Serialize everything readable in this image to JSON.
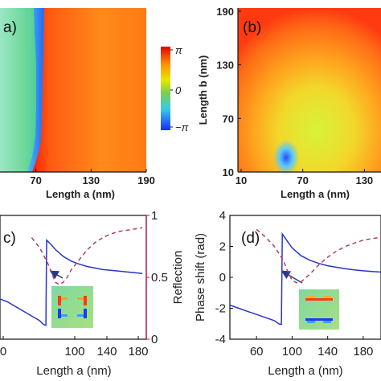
{
  "figure": {
    "panels": [
      {
        "id": "a",
        "label": "a)"
      },
      {
        "id": "b",
        "label": "(b)"
      },
      {
        "id": "c",
        "label": "c)"
      },
      {
        "id": "d",
        "label": "(d)"
      }
    ]
  },
  "chart_data": [
    {
      "panel": "a",
      "type": "heatmap",
      "title": "",
      "xlabel": "Length a (nm)",
      "ylabel": "",
      "x_ticks": [
        "70",
        "130",
        "190"
      ],
      "xlim": [
        10,
        190
      ],
      "ylim": [
        10,
        190
      ],
      "value": "phase",
      "colorbar": {
        "ticks": [
          "π",
          "0",
          "−π"
        ],
        "range": [
          -3.1416,
          3.1416
        ]
      },
      "cutoff_boundary": {
        "y": [
          10,
          20,
          30,
          45,
          60,
          80,
          100,
          130,
          160,
          190
        ],
        "x": [
          58,
          62,
          66,
          68,
          68,
          69,
          69,
          69,
          70,
          70
        ]
      },
      "colors": {
        "left_region": "#7fe0a8",
        "right_region": "#ff5a1e",
        "boundary_low": "#1f3dff"
      }
    },
    {
      "panel": "b",
      "type": "heatmap",
      "title": "",
      "xlabel": "Length a (nm)",
      "ylabel": "Length b (nm)",
      "x_ticks": [
        "10",
        "70",
        "130"
      ],
      "y_ticks": [
        "10",
        "70",
        "130",
        "190"
      ],
      "xlim": [
        10,
        190
      ],
      "ylim": [
        10,
        190
      ],
      "value": "phase",
      "features": {
        "low_phase_spot": {
          "x": 70,
          "y": 22
        }
      },
      "colors": {
        "edge": "#ff3a12",
        "center": "#c8f53a"
      }
    },
    {
      "panel": "c",
      "type": "line",
      "title": "",
      "xlabel": "Length a (nm)",
      "ylabel": "",
      "y2label": "Reflection",
      "x_ticks": [
        "0",
        "100",
        "140",
        "180"
      ],
      "y2_ticks": [
        "1",
        "0.5",
        "0"
      ],
      "xlim": [
        30,
        215
      ],
      "ylim": [
        -4,
        4
      ],
      "y2lim": [
        0,
        1
      ],
      "series": [
        {
          "axis": "left",
          "style": "solid",
          "color": "#2a35c8",
          "x": [
            30,
            40,
            50,
            60,
            70,
            80,
            85,
            88,
            89,
            95,
            100,
            110,
            120,
            130,
            140,
            150,
            160,
            170,
            180,
            190,
            200,
            210
          ],
          "y": [
            -1.4,
            -1.6,
            -1.9,
            -2.2,
            -2.5,
            -2.8,
            -3.05,
            -3.1,
            2.4,
            2.1,
            1.8,
            1.35,
            1.05,
            0.85,
            0.7,
            0.6,
            0.5,
            0.45,
            0.4,
            0.35,
            0.3,
            0.25
          ]
        },
        {
          "axis": "right",
          "style": "dashed",
          "color": "#b83a6a",
          "x": [
            70,
            80,
            90,
            95,
            100,
            105,
            110,
            115,
            120,
            130,
            140,
            150,
            160,
            170,
            180,
            190,
            200,
            210
          ],
          "y": [
            0.82,
            0.74,
            0.62,
            0.54,
            0.46,
            0.44,
            0.46,
            0.5,
            0.56,
            0.64,
            0.72,
            0.78,
            0.82,
            0.85,
            0.87,
            0.88,
            0.89,
            0.9
          ]
        }
      ],
      "inset": "charge-distribution-map"
    },
    {
      "panel": "d",
      "type": "line",
      "title": "",
      "xlabel": "Length a (nm)",
      "ylabel": "Phase shift (rad)",
      "x_ticks": [
        "60",
        "100",
        "140",
        "180"
      ],
      "y_ticks": [
        "4",
        "2",
        "0",
        "-2",
        "-4"
      ],
      "xlim": [
        30,
        200
      ],
      "ylim": [
        -4,
        4
      ],
      "series": [
        {
          "style": "solid",
          "color": "#2a35c8",
          "x": [
            30,
            40,
            50,
            60,
            70,
            80,
            85,
            88,
            89,
            95,
            100,
            110,
            120,
            130,
            140,
            150,
            160,
            170,
            180,
            190,
            200
          ],
          "y": [
            -1.8,
            -2.0,
            -2.2,
            -2.4,
            -2.6,
            -2.8,
            -3.0,
            -3.05,
            2.8,
            2.3,
            1.9,
            1.4,
            1.1,
            0.9,
            0.75,
            0.65,
            0.55,
            0.48,
            0.42,
            0.38,
            0.34
          ]
        },
        {
          "style": "dashed",
          "color": "#b83a6a",
          "x": [
            60,
            70,
            80,
            90,
            95,
            100,
            105,
            110,
            120,
            130,
            140,
            150,
            160,
            170,
            180,
            190,
            200
          ],
          "y": [
            3.1,
            2.6,
            2.0,
            1.1,
            0.4,
            -0.2,
            -0.35,
            -0.3,
            0.2,
            0.8,
            1.3,
            1.7,
            2.0,
            2.2,
            2.4,
            2.5,
            2.6
          ]
        }
      ],
      "inset": "charge-distribution-map"
    }
  ]
}
